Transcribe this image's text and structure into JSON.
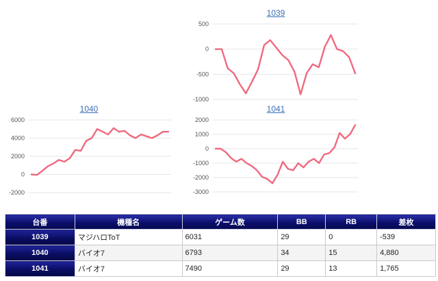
{
  "charts": [
    {
      "id": "1039",
      "title": "1039"
    },
    {
      "id": "1040",
      "title": "1040"
    },
    {
      "id": "1041",
      "title": "1041"
    }
  ],
  "chart_data": [
    {
      "type": "line",
      "title": "1039",
      "color": "#f0697f",
      "ylim": [
        -1000,
        500
      ],
      "yticks": [
        500,
        0,
        -500,
        -1000
      ],
      "values": [
        0,
        0,
        -380,
        -480,
        -700,
        -880,
        -650,
        -400,
        80,
        180,
        30,
        -120,
        -220,
        -450,
        -900,
        -480,
        -300,
        -360,
        50,
        280,
        0,
        -40,
        -160,
        -480
      ]
    },
    {
      "type": "line",
      "title": "1040",
      "color": "#f0697f",
      "ylim": [
        -2000,
        6000
      ],
      "yticks": [
        6000,
        4000,
        2000,
        0,
        -2000
      ],
      "values": [
        0,
        -50,
        400,
        900,
        1200,
        1600,
        1400,
        1800,
        2700,
        2600,
        3700,
        4000,
        5000,
        4700,
        4400,
        5100,
        4700,
        4800,
        4300,
        4000,
        4400,
        4200,
        4000,
        4300,
        4700,
        4700
      ]
    },
    {
      "type": "line",
      "title": "1041",
      "color": "#f0697f",
      "ylim": [
        -3000,
        2000
      ],
      "yticks": [
        2000,
        1000,
        0,
        -1000,
        -2000,
        -3000
      ],
      "values": [
        0,
        0,
        -250,
        -650,
        -900,
        -700,
        -1000,
        -1200,
        -1500,
        -1950,
        -2100,
        -2400,
        -1800,
        -900,
        -1400,
        -1500,
        -1000,
        -1300,
        -900,
        -700,
        -1000,
        -400,
        -300,
        100,
        1100,
        700,
        1000,
        1650
      ]
    }
  ],
  "table": {
    "headers": [
      "台番",
      "機種名",
      "ゲーム数",
      "BB",
      "RB",
      "差枚"
    ],
    "rows": [
      {
        "number": "1039",
        "model": "マジハロToT",
        "games": "6031",
        "bb": "29",
        "rb": "0",
        "diff": "-539",
        "negative": true
      },
      {
        "number": "1040",
        "model": "バイオ7",
        "games": "6793",
        "bb": "34",
        "rb": "15",
        "diff": "4,880",
        "negative": false
      },
      {
        "number": "1041",
        "model": "バイオ7",
        "games": "7490",
        "bb": "29",
        "rb": "13",
        "diff": "1,765",
        "negative": false
      }
    ]
  }
}
